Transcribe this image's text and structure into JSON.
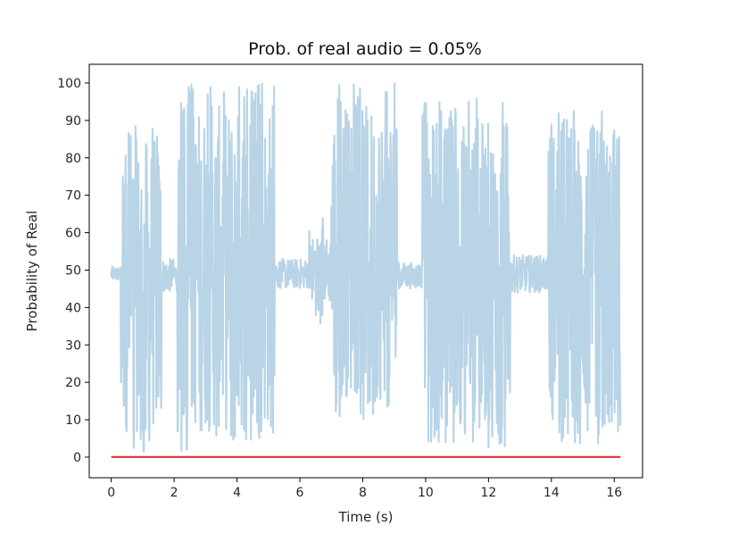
{
  "chart_data": {
    "type": "line",
    "title": "Prob. of real audio = 0.05%",
    "xlabel": "Time (s)",
    "ylabel": "Probability of Real",
    "xlim": [
      -0.7,
      16.9
    ],
    "ylim": [
      -5.5,
      105
    ],
    "xticks": [
      0,
      2,
      4,
      6,
      8,
      10,
      12,
      14,
      16
    ],
    "yticks": [
      0,
      10,
      20,
      30,
      40,
      50,
      60,
      70,
      80,
      90,
      100
    ],
    "grid": false,
    "legend": "none",
    "series": [
      {
        "color": "#b8d4e6",
        "style": "dense oscillating per-frame probability around 50",
        "baseline": 48.5,
        "segments": [
          {
            "x": [
              0.0,
              0.3
            ],
            "low": 47,
            "high": 51
          },
          {
            "x": [
              0.3,
              1.6
            ],
            "low": 0.5,
            "high": 91
          },
          {
            "x": [
              1.6,
              2.1
            ],
            "low": 44,
            "high": 53
          },
          {
            "x": [
              2.1,
              5.2
            ],
            "low": 0.5,
            "high": 100
          },
          {
            "x": [
              5.2,
              6.3
            ],
            "low": 45,
            "high": 53
          },
          {
            "x": [
              6.3,
              7.0
            ],
            "low": 35,
            "high": 65
          },
          {
            "x": [
              7.0,
              9.1
            ],
            "low": 10,
            "high": 100
          },
          {
            "x": [
              9.1,
              9.9
            ],
            "low": 45,
            "high": 52
          },
          {
            "x": [
              9.9,
              12.7
            ],
            "low": 2,
            "high": 96
          },
          {
            "x": [
              12.7,
              13.9
            ],
            "low": 44,
            "high": 54
          },
          {
            "x": [
              13.9,
              16.2
            ],
            "low": 3,
            "high": 95
          }
        ]
      },
      {
        "color": "#d62728",
        "x": [
          0.0,
          2.0,
          4.0,
          6.0,
          8.0,
          10.0,
          12.0,
          14.0,
          16.2
        ],
        "values": [
          0.05,
          0.05,
          0.05,
          0.05,
          0.05,
          0.05,
          0.05,
          0.05,
          0.05
        ]
      }
    ]
  }
}
